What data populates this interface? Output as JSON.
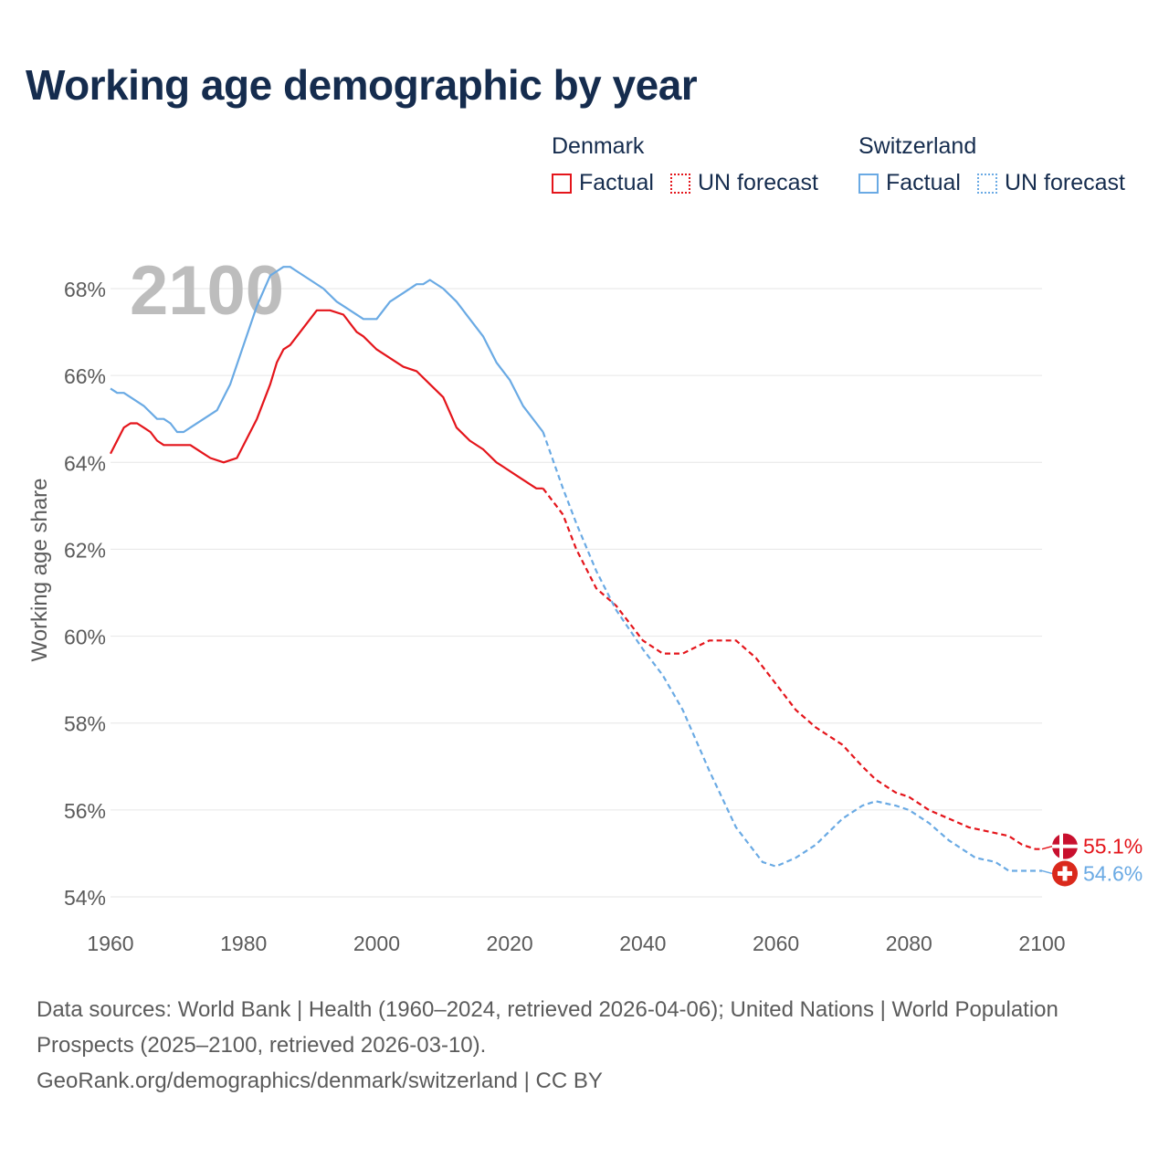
{
  "title": "Working age demographic by year",
  "legend": {
    "groups": [
      {
        "name": "Denmark",
        "color": "#e4151b",
        "items": [
          {
            "label": "Factual",
            "style": "solid"
          },
          {
            "label": "UN forecast",
            "style": "dotted"
          }
        ]
      },
      {
        "name": "Switzerland",
        "color": "#6aaae4",
        "items": [
          {
            "label": "Factual",
            "style": "solid"
          },
          {
            "label": "UN forecast",
            "style": "dotted"
          }
        ]
      }
    ]
  },
  "year_watermark": "2100",
  "footer": {
    "sources": "Data sources: World Bank | Health (1960–2024, retrieved 2026-04-06); United Nations | World Population Prospects (2025–2100, retrieved 2026-03-10).",
    "link": "GeoRank.org/demographics/denmark/switzerland | CC BY"
  },
  "chart_data": {
    "type": "line",
    "title": "Working age demographic by year",
    "xlabel": "",
    "ylabel": "Working age share",
    "xlim": [
      1960,
      2100
    ],
    "ylim": [
      54,
      69
    ],
    "xticks": [
      1960,
      1980,
      2000,
      2020,
      2040,
      2060,
      2080,
      2100
    ],
    "xtick_labels": [
      "1960",
      "1980",
      "2000",
      "2020",
      "2040",
      "2060",
      "2080",
      "2100"
    ],
    "yticks": [
      54,
      56,
      58,
      60,
      62,
      64,
      66,
      68
    ],
    "ytick_labels": [
      "54%",
      "56%",
      "58%",
      "60%",
      "62%",
      "64%",
      "66%",
      "68%"
    ],
    "grid": true,
    "forecast_start": 2025,
    "series": [
      {
        "name": "Denmark",
        "color": "#e4151b",
        "end_label": "55.1%",
        "flag": "denmark",
        "x": [
          1960,
          1962,
          1963,
          1964,
          1965,
          1966,
          1967,
          1968,
          1970,
          1972,
          1974,
          1975,
          1977,
          1979,
          1980,
          1982,
          1984,
          1985,
          1986,
          1987,
          1988,
          1990,
          1991,
          1993,
          1995,
          1997,
          1998,
          2000,
          2002,
          2004,
          2006,
          2008,
          2010,
          2012,
          2014,
          2016,
          2018,
          2019,
          2021,
          2022,
          2024,
          2025,
          2028,
          2030,
          2033,
          2036,
          2040,
          2043,
          2046,
          2050,
          2052,
          2054,
          2057,
          2060,
          2063,
          2066,
          2070,
          2073,
          2075,
          2078,
          2080,
          2083,
          2086,
          2089,
          2092,
          2095,
          2097,
          2099,
          2100
        ],
        "values": [
          64.2,
          64.8,
          64.9,
          64.9,
          64.8,
          64.7,
          64.5,
          64.4,
          64.4,
          64.4,
          64.2,
          64.1,
          64.0,
          64.1,
          64.4,
          65.0,
          65.8,
          66.3,
          66.6,
          66.7,
          66.9,
          67.3,
          67.5,
          67.5,
          67.4,
          67.0,
          66.9,
          66.6,
          66.4,
          66.2,
          66.1,
          65.8,
          65.5,
          64.8,
          64.5,
          64.3,
          64.0,
          63.9,
          63.7,
          63.6,
          63.4,
          63.4,
          62.8,
          62.0,
          61.1,
          60.7,
          59.9,
          59.6,
          59.6,
          59.9,
          59.9,
          59.9,
          59.5,
          58.9,
          58.3,
          57.9,
          57.5,
          57.0,
          56.7,
          56.4,
          56.3,
          56.0,
          55.8,
          55.6,
          55.5,
          55.4,
          55.2,
          55.1,
          55.1
        ]
      },
      {
        "name": "Switzerland",
        "color": "#6aaae4",
        "end_label": "54.6%",
        "flag": "switzerland",
        "x": [
          1960,
          1961,
          1962,
          1963,
          1965,
          1967,
          1968,
          1969,
          1970,
          1971,
          1972,
          1974,
          1976,
          1977,
          1978,
          1980,
          1982,
          1984,
          1985,
          1986,
          1987,
          1988,
          1990,
          1992,
          1994,
          1996,
          1998,
          2000,
          2002,
          2004,
          2006,
          2007,
          2008,
          2010,
          2012,
          2014,
          2016,
          2018,
          2020,
          2022,
          2024,
          2025,
          2028,
          2030,
          2033,
          2036,
          2040,
          2043,
          2046,
          2050,
          2054,
          2058,
          2060,
          2063,
          2066,
          2070,
          2073,
          2075,
          2078,
          2080,
          2083,
          2086,
          2090,
          2093,
          2095,
          2098,
          2100
        ],
        "values": [
          65.7,
          65.6,
          65.6,
          65.5,
          65.3,
          65.0,
          65.0,
          64.9,
          64.7,
          64.7,
          64.8,
          65.0,
          65.2,
          65.5,
          65.8,
          66.7,
          67.6,
          68.3,
          68.4,
          68.5,
          68.5,
          68.4,
          68.2,
          68.0,
          67.7,
          67.5,
          67.3,
          67.3,
          67.7,
          67.9,
          68.1,
          68.1,
          68.2,
          68.0,
          67.7,
          67.3,
          66.9,
          66.3,
          65.9,
          65.3,
          64.9,
          64.7,
          63.4,
          62.6,
          61.5,
          60.6,
          59.7,
          59.1,
          58.3,
          56.9,
          55.6,
          54.8,
          54.7,
          54.9,
          55.2,
          55.8,
          56.1,
          56.2,
          56.1,
          56.0,
          55.7,
          55.3,
          54.9,
          54.8,
          54.6,
          54.6,
          54.6
        ]
      }
    ]
  }
}
